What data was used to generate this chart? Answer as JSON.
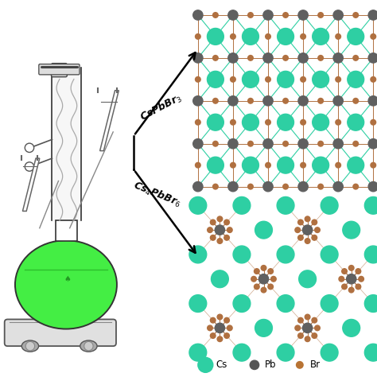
{
  "background_color": "#ffffff",
  "label1": "CsPbBr$_3$",
  "label2": "Cs$_4$PbBr$_6$",
  "legend_items": [
    "Cs",
    "Pb",
    "Br"
  ],
  "legend_colors": [
    "#2ecfa3",
    "#555555",
    "#b87333"
  ],
  "cs_color": "#2ecfa3",
  "pb_color": "#606060",
  "br_color": "#b07040",
  "bond_color_top": "#b07040",
  "bond_color_bot": "#b07040",
  "cs_bond_color": "#2ecfa3",
  "flask_green": "#44ee44",
  "flask_outline": "#333333"
}
